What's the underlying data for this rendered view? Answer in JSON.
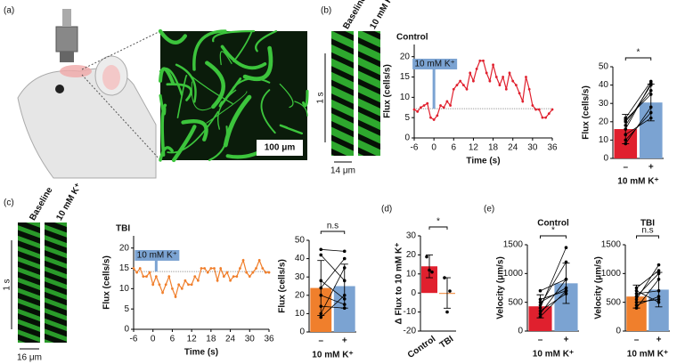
{
  "panels": [
    "(a)",
    "(b)",
    "(c)",
    "(d)",
    "(e)"
  ],
  "images": {
    "scale_bar": "100 μm",
    "baseline": "Baseline",
    "k": "10 mM K⁺",
    "time_bar": "1 s",
    "width_b": "14 μm",
    "width_c": "16 μm"
  },
  "chart_data": [
    {
      "type": "line",
      "title": "Control",
      "xlabel": "Time (s)",
      "ylabel": "Flux (cells/s)",
      "annotation": "10 mM K⁺",
      "stimulus_x": 0,
      "hline": 7.2,
      "x": [
        -6,
        -5,
        -4,
        -3,
        -2,
        -1,
        0,
        1,
        2,
        3,
        4,
        5,
        6,
        7,
        8,
        9,
        10,
        11,
        12,
        13,
        14,
        15,
        16,
        17,
        18,
        19,
        20,
        21,
        22,
        23,
        24,
        25,
        26,
        27,
        28,
        29,
        30,
        31,
        32,
        33,
        34,
        35,
        36
      ],
      "values": [
        7,
        6.5,
        7.5,
        8,
        8.5,
        5,
        4.5,
        5.5,
        8,
        7.5,
        9,
        8,
        12,
        13,
        14,
        13,
        12,
        16,
        14,
        17,
        19,
        19,
        16,
        14,
        18,
        15,
        13,
        15,
        12,
        16,
        14,
        13,
        11,
        9,
        15,
        12,
        8,
        7,
        7,
        5,
        5,
        6,
        7
      ],
      "color": "#e0202e",
      "xlim": [
        -6,
        36
      ],
      "ylim": [
        0,
        23
      ],
      "xticks": [
        -6,
        0,
        6,
        12,
        18,
        24,
        30,
        36
      ],
      "yticks": [
        0,
        5,
        10,
        15,
        20
      ]
    },
    {
      "type": "bar",
      "ylabel": "Flux (cells/s)",
      "xlabel": "10 mM K⁺",
      "categories": [
        "–",
        "+"
      ],
      "values": [
        16,
        30.5
      ],
      "errors": [
        8,
        10
      ],
      "colors": [
        "#e0202e",
        "#7ba3d2"
      ],
      "pairs": [
        [
          10,
          25
        ],
        [
          13,
          22
        ],
        [
          16,
          41
        ],
        [
          20,
          37
        ],
        [
          22,
          42
        ],
        [
          8,
          28
        ],
        [
          18,
          40
        ],
        [
          21,
          35
        ]
      ],
      "significance": "*",
      "ylim": [
        0,
        50
      ],
      "yticks": [
        0,
        10,
        20,
        30,
        40,
        50
      ]
    },
    {
      "type": "line",
      "title": "TBI",
      "xlabel": "Time (s)",
      "ylabel": "Flux (cells/s)",
      "annotation": "10 mM K⁺",
      "stimulus_x": 1,
      "hline": 14.2,
      "x": [
        -6,
        -5,
        -4,
        -3,
        -2,
        -1,
        0,
        1,
        2,
        3,
        4,
        5,
        6,
        7,
        8,
        9,
        10,
        11,
        12,
        13,
        14,
        15,
        16,
        17,
        18,
        19,
        20,
        21,
        22,
        23,
        24,
        25,
        26,
        27,
        28,
        29,
        30,
        31,
        32,
        33,
        34,
        35,
        36
      ],
      "values": [
        15,
        14,
        15,
        13,
        13,
        14,
        11,
        13,
        11,
        9,
        11,
        13,
        10,
        8,
        11,
        10,
        12,
        11,
        11,
        13,
        12,
        15,
        15,
        14,
        15,
        15,
        12,
        15,
        13,
        14,
        12,
        13,
        13,
        15,
        17,
        14,
        13,
        14,
        15,
        17,
        15,
        14,
        14
      ],
      "color": "#f07f2c",
      "xlim": [
        -6,
        36
      ],
      "ylim": [
        0,
        23
      ],
      "xticks": [
        -6,
        0,
        6,
        12,
        18,
        24,
        30,
        36
      ],
      "yticks": [
        0,
        5,
        10,
        15,
        20
      ]
    },
    {
      "type": "bar",
      "ylabel": "Flux (cells/s)",
      "xlabel": "10 mM K⁺",
      "categories": [
        "–",
        "+"
      ],
      "values": [
        24,
        25
      ],
      "errors": [
        15,
        12
      ],
      "colors": [
        "#f07f2c",
        "#7ba3d2"
      ],
      "pairs": [
        [
          10,
          35
        ],
        [
          14,
          13
        ],
        [
          20,
          15
        ],
        [
          24,
          40
        ],
        [
          42,
          28
        ],
        [
          45,
          44
        ],
        [
          28,
          18
        ],
        [
          8,
          20
        ]
      ],
      "significance": "n.s",
      "ylim": [
        0,
        50
      ],
      "yticks": [
        0,
        10,
        20,
        30,
        40,
        50
      ]
    },
    {
      "type": "bar",
      "ylabel": "Δ Flux to 10 mM K⁺",
      "categories": [
        "Control",
        "TBI"
      ],
      "values": [
        14,
        0
      ],
      "errors": [
        6,
        8
      ],
      "colors": [
        "#e0202e",
        "#f07f2c"
      ],
      "points": [
        [
          19,
          12,
          11
        ],
        [
          8,
          -10,
          1
        ]
      ],
      "significance": "*",
      "ylim": [
        -20,
        30
      ],
      "yticks": [
        -20,
        -10,
        0,
        10,
        20,
        30
      ]
    },
    {
      "type": "bar",
      "title": "Control",
      "ylabel": "Velocity (μm/s)",
      "xlabel": "10 mM K⁺",
      "categories": [
        "–",
        "+"
      ],
      "values": [
        430,
        830
      ],
      "errors": [
        200,
        350
      ],
      "colors": [
        "#e0202e",
        "#7ba3d2"
      ],
      "pairs": [
        [
          250,
          700
        ],
        [
          300,
          900
        ],
        [
          350,
          650
        ],
        [
          400,
          1450
        ],
        [
          450,
          1200
        ],
        [
          500,
          750
        ],
        [
          550,
          700
        ],
        [
          700,
          900
        ]
      ],
      "significance": "*",
      "ylim": [
        0,
        1500
      ],
      "yticks": [
        0,
        500,
        1000,
        1500
      ]
    },
    {
      "type": "bar",
      "title": "TBI",
      "ylabel": "Velocity (μm/s)",
      "xlabel": "10 mM K⁺",
      "categories": [
        "–",
        "+"
      ],
      "values": [
        600,
        720
      ],
      "errors": [
        200,
        300
      ],
      "colors": [
        "#f07f2c",
        "#7ba3d2"
      ],
      "pairs": [
        [
          450,
          600
        ],
        [
          500,
          550
        ],
        [
          550,
          1150
        ],
        [
          600,
          1000
        ],
        [
          650,
          700
        ],
        [
          700,
          500
        ],
        [
          750,
          1050
        ],
        [
          400,
          900
        ]
      ],
      "significance": "n.s",
      "ylim": [
        0,
        1500
      ],
      "yticks": [
        0,
        500,
        1000,
        1500
      ]
    }
  ]
}
